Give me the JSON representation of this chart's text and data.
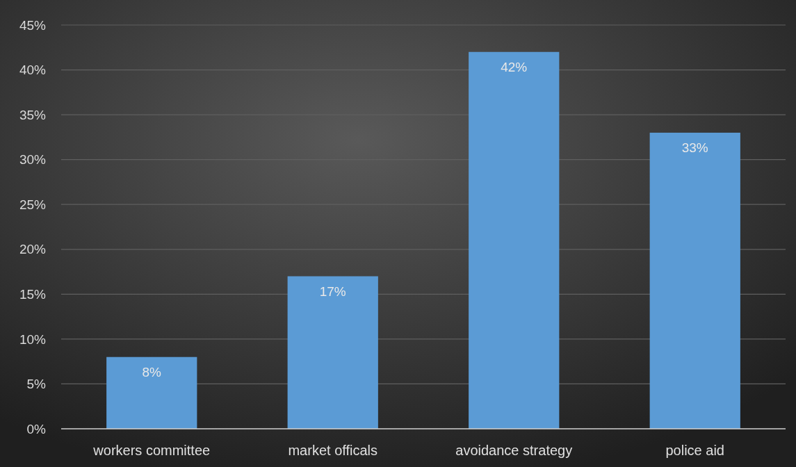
{
  "chart_data": {
    "type": "bar",
    "categories": [
      "workers committee",
      "market officals",
      "avoidance strategy",
      "police aid"
    ],
    "values": [
      8,
      17,
      42,
      33
    ],
    "color": "#5b9bd5",
    "value_labels": [
      "8%",
      "17%",
      "42%",
      "33%"
    ],
    "ylim": [
      0,
      45
    ],
    "yticks": [
      {
        "value": 0,
        "label": "0%"
      },
      {
        "value": 5,
        "label": "5%"
      },
      {
        "value": 10,
        "label": "10%"
      },
      {
        "value": 15,
        "label": "15%"
      },
      {
        "value": 20,
        "label": "20%"
      },
      {
        "value": 25,
        "label": "25%"
      },
      {
        "value": 30,
        "label": "30%"
      },
      {
        "value": 35,
        "label": "35%"
      },
      {
        "value": 40,
        "label": "40%"
      },
      {
        "value": 45,
        "label": "45%"
      }
    ],
    "grid": "y"
  }
}
